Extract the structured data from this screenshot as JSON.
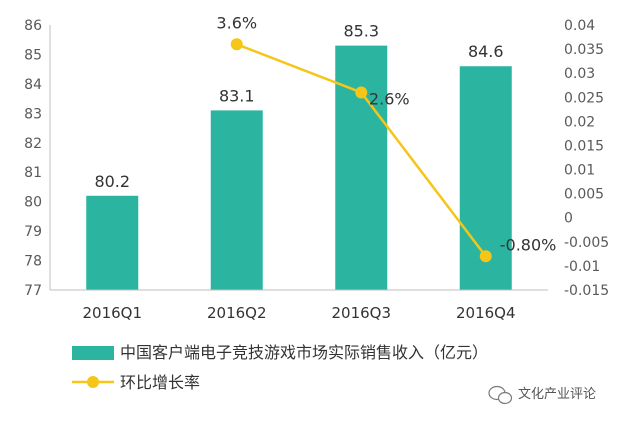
{
  "chart_data": {
    "type": "bar+line",
    "categories": [
      "2016Q1",
      "2016Q2",
      "2016Q3",
      "2016Q4"
    ],
    "series": [
      {
        "name": "中国客户端电子竞技游戏市场实际销售收入（亿元）",
        "type": "bar",
        "axis": "left",
        "values": [
          80.2,
          83.1,
          85.3,
          84.6
        ],
        "labels": [
          "80.2",
          "83.1",
          "85.3",
          "84.6"
        ],
        "color": "#2BB5A0"
      },
      {
        "name": "环比增长率",
        "type": "line",
        "axis": "right",
        "values": [
          null,
          0.036,
          0.026,
          -0.008
        ],
        "labels": [
          "",
          "3.6%",
          "2.6%",
          "-0.80%"
        ],
        "color": "#F5C518"
      }
    ],
    "y_left": {
      "min": 77,
      "max": 86,
      "ticks": [
        "77",
        "78",
        "79",
        "80",
        "81",
        "82",
        "83",
        "84",
        "85",
        "86"
      ]
    },
    "y_right": {
      "min": -0.015,
      "max": 0.04,
      "ticks": [
        "-0.015",
        "-0.01",
        "-0.005",
        "0",
        "0.005",
        "0.01",
        "0.015",
        "0.02",
        "0.025",
        "0.03",
        "0.035",
        "0.04"
      ]
    },
    "legend_position": "bottom-left",
    "grid": false
  },
  "watermark": {
    "text": "文化产业评论"
  }
}
